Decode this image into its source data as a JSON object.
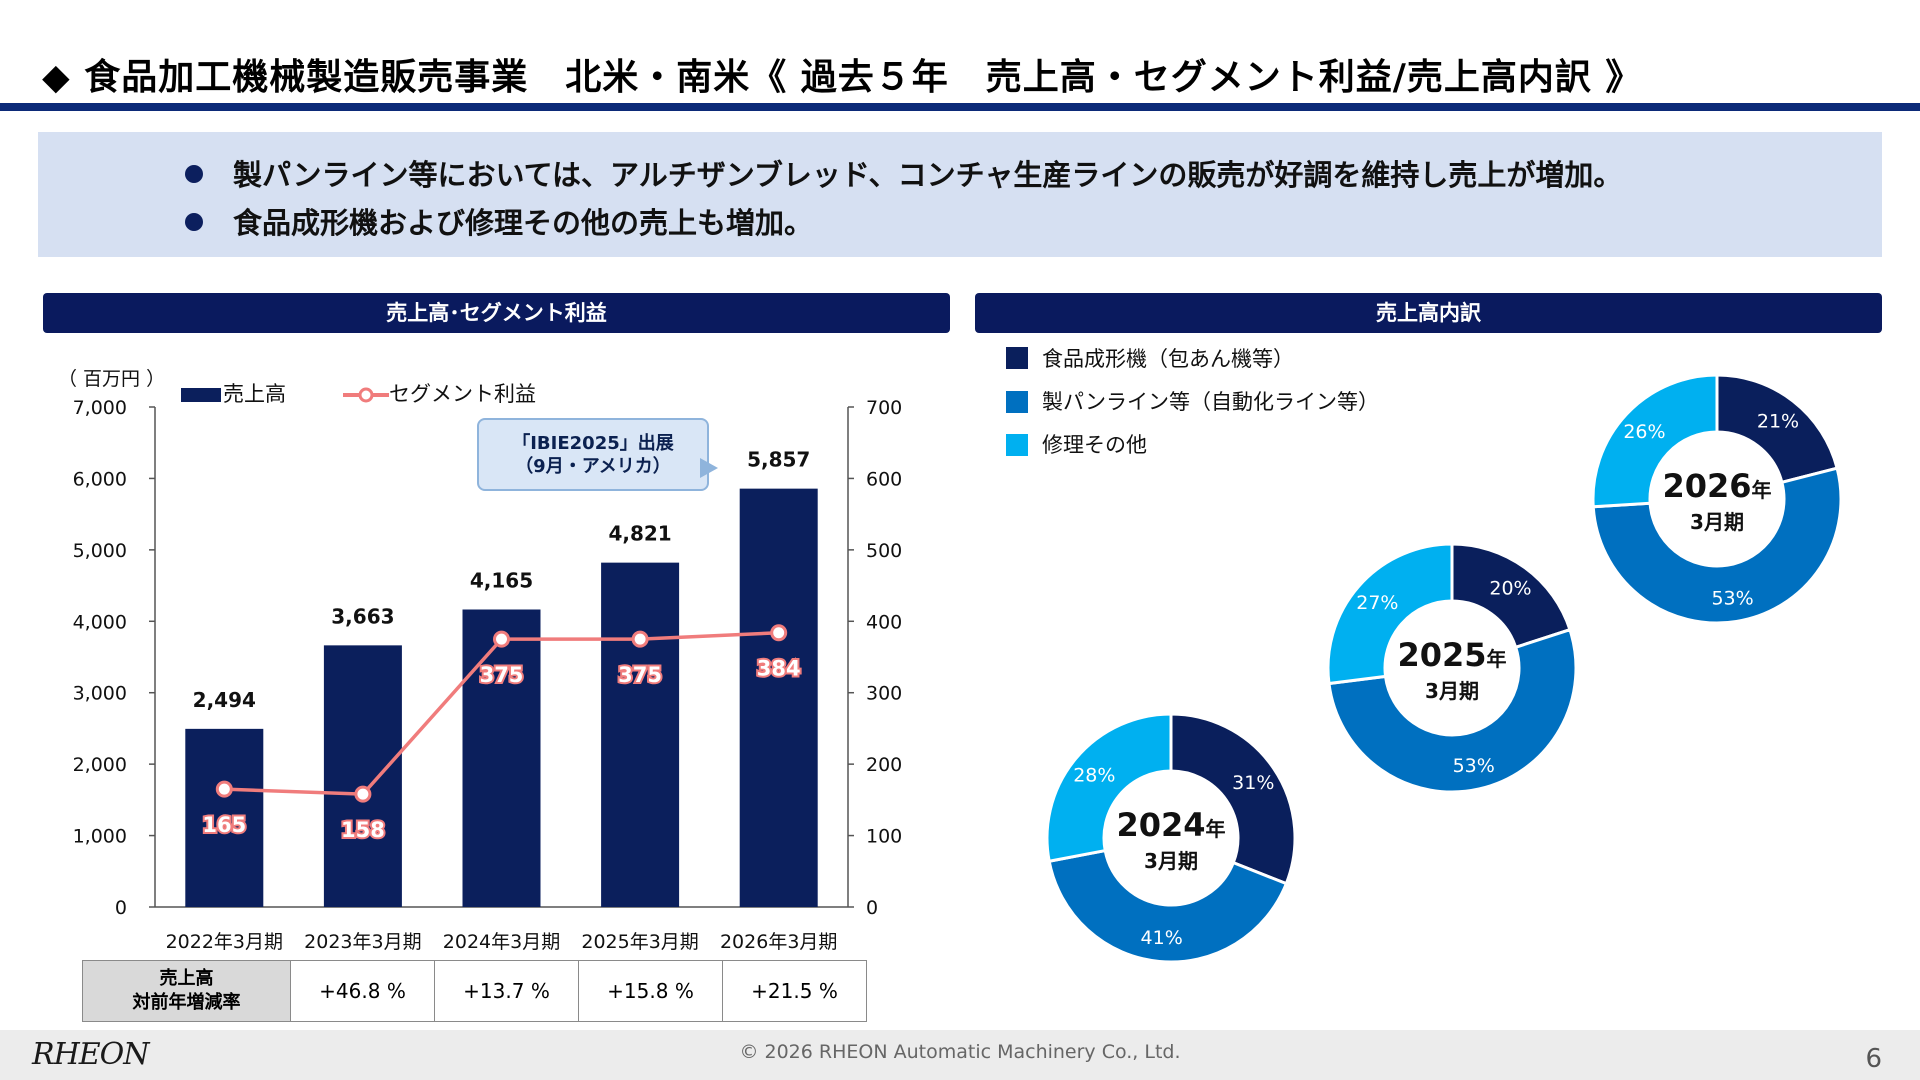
{
  "title": "◆ 食品加工機械製造販売事業　北米・南米《 過去５年　売上高・セグメント利益/売上高内訳 》",
  "bullets": [
    "製パンライン等においては、アルチザンブレッド、コンチャ生産ラインの販売が好調を維持し売上が増加。",
    "食品成形機および修理その他の売上も増加。"
  ],
  "left_panel_title": "売上高･セグメント利益",
  "right_panel_title": "売上高内訳",
  "unit_label": "（ 百万円 ）",
  "legend": {
    "sales": "売上高",
    "profit": "セグメント利益"
  },
  "callout": {
    "line1": "「IBIE2025」出展",
    "line2": "（9月・アメリカ）"
  },
  "growth_table": {
    "header_line1": "売上高",
    "header_line2": "対前年増減率",
    "values": [
      "+46.8 %",
      "+13.7 %",
      "+15.8 %",
      "+21.5 %"
    ]
  },
  "pie_legend": [
    "食品成形機（包あん機等）",
    "製パンライン等（自動化ライン等）",
    "修理その他"
  ],
  "colors": {
    "sales_bar": "#0b1f5c",
    "profit_line": "#f07c7c",
    "seg1": "#0a1f5c",
    "seg2": "#0070c0",
    "seg3": "#00b0f0",
    "header": "#0a1a5e"
  },
  "chart_data": [
    {
      "type": "bar",
      "categories": [
        "2022年3月期",
        "2023年3月期",
        "2024年3月期",
        "2025年3月期",
        "2026年3月期"
      ],
      "series": [
        {
          "name": "売上高",
          "type": "bar",
          "axis": "left",
          "values": [
            2494,
            3663,
            4165,
            4821,
            5857
          ],
          "labels": [
            "2,494",
            "3,663",
            "4,165",
            "4,821",
            "5,857"
          ]
        },
        {
          "name": "セグメント利益",
          "type": "line",
          "axis": "right",
          "values": [
            165,
            158,
            375,
            375,
            384
          ],
          "labels": [
            "165",
            "158",
            "375",
            "375",
            "384"
          ]
        }
      ],
      "ylim": [
        0,
        7000
      ],
      "y_ticks": [
        "0",
        "1,000",
        "2,000",
        "3,000",
        "4,000",
        "5,000",
        "6,000",
        "7,000"
      ],
      "y2lim": [
        0,
        700
      ],
      "y2_ticks": [
        "0",
        "100",
        "200",
        "300",
        "400",
        "500",
        "600",
        "700"
      ]
    },
    {
      "type": "pie",
      "charts": [
        {
          "center_year": "2024",
          "center_year_suffix": "年",
          "center_period": "3月期",
          "values": [
            31,
            41,
            28
          ],
          "labels": [
            "31%",
            "41%",
            "28%"
          ]
        },
        {
          "center_year": "2025",
          "center_year_suffix": "年",
          "center_period": "3月期",
          "values": [
            20,
            53,
            27
          ],
          "labels": [
            "20%",
            "53%",
            "27%"
          ]
        },
        {
          "center_year": "2026",
          "center_year_suffix": "年",
          "center_period": "3月期",
          "values": [
            21,
            53,
            26
          ],
          "labels": [
            "21%",
            "53%",
            "26%"
          ]
        }
      ],
      "legend": [
        "食品成形機（包あん機等）",
        "製パンライン等（自動化ライン等）",
        "修理その他"
      ]
    }
  ],
  "footer": {
    "logo": "RHEON",
    "copyright": "© 2026 RHEON Automatic Machinery Co., Ltd.",
    "page": "6"
  }
}
